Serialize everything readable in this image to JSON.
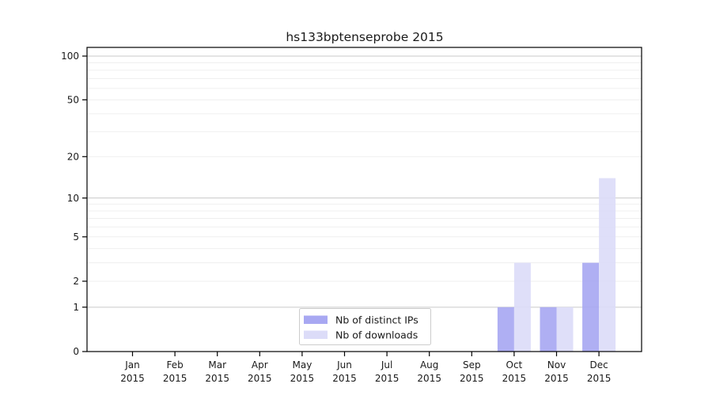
{
  "chart_data": {
    "type": "bar",
    "title": "hs133bptenseprobe 2015",
    "categories": [
      "Jan",
      "Feb",
      "Mar",
      "Apr",
      "May",
      "Jun",
      "Jul",
      "Aug",
      "Sep",
      "Oct",
      "Nov",
      "Dec"
    ],
    "x_tick_line2": "2015",
    "series": [
      {
        "key": "distinct-ips",
        "name": "Nb of distinct IPs",
        "color": "#a8a8f2",
        "values": [
          0,
          0,
          0,
          0,
          0,
          0,
          0,
          0,
          0,
          1,
          1,
          3
        ]
      },
      {
        "key": "downloads",
        "name": "Nb of downloads",
        "color": "#dcdcf8",
        "values": [
          0,
          0,
          0,
          0,
          0,
          0,
          0,
          0,
          0,
          3,
          1,
          14
        ]
      }
    ],
    "yscale": "symlog: y = log10(1 + v)",
    "yticks": [
      0,
      1,
      2,
      5,
      10,
      20,
      50,
      100
    ],
    "major_gridlines": [
      1,
      10,
      100
    ],
    "minor_gridlines": [
      2,
      3,
      4,
      5,
      6,
      7,
      8,
      9,
      20,
      30,
      40,
      50,
      60,
      70,
      80,
      90
    ],
    "ylim": [
      0,
      112
    ],
    "xlabel": "",
    "ylabel": "",
    "grid": true,
    "legend_position": "bottom-center"
  },
  "colors": {
    "background": "#ffffff",
    "axis": "#000000",
    "grid_major": "#c9c9c9",
    "grid_minor": "#efefef",
    "text": "#1a1a1a",
    "legend_border": "#cccccc",
    "legend_background": "#ffffff"
  }
}
